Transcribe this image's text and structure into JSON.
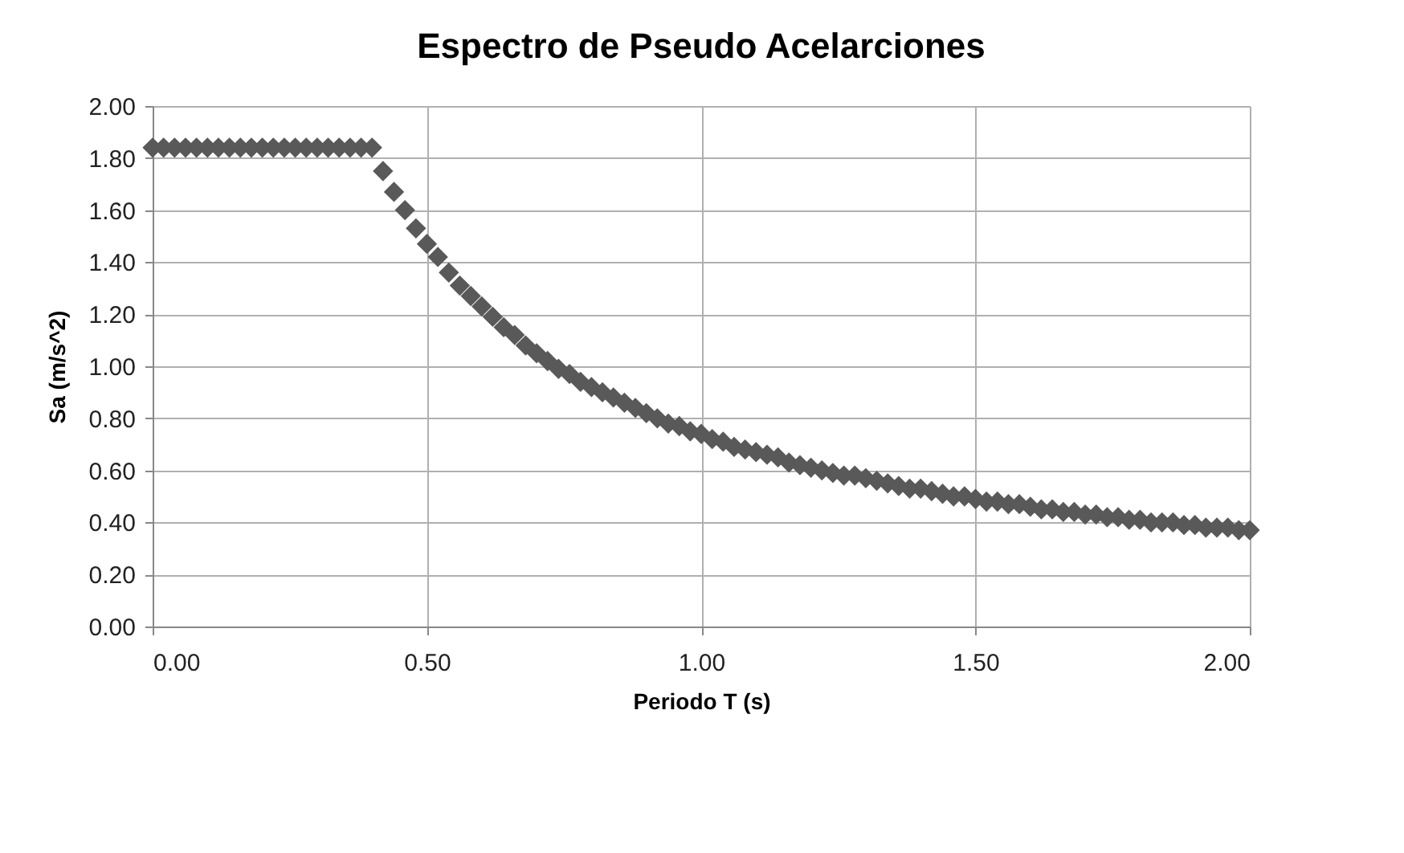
{
  "chart_data": {
    "type": "scatter",
    "title": "Espectro de Pseudo Acelarciones",
    "xlabel": "Periodo T (s)",
    "ylabel": "Sa (m/s^2)",
    "x": [
      0,
      0.02,
      0.04,
      0.06,
      0.08,
      0.1,
      0.12,
      0.14,
      0.16,
      0.18,
      0.2,
      0.22,
      0.24,
      0.26,
      0.28,
      0.3,
      0.32,
      0.34,
      0.36,
      0.38,
      0.4,
      0.42,
      0.44,
      0.46,
      0.48,
      0.5,
      0.52,
      0.54,
      0.56,
      0.58,
      0.6,
      0.62,
      0.64,
      0.66,
      0.68,
      0.7,
      0.72,
      0.74,
      0.76,
      0.78,
      0.8,
      0.82,
      0.84,
      0.86,
      0.88,
      0.9,
      0.92,
      0.94,
      0.96,
      0.98,
      1,
      1.02,
      1.04,
      1.06,
      1.08,
      1.1,
      1.12,
      1.14,
      1.16,
      1.18,
      1.2,
      1.22,
      1.24,
      1.26,
      1.28,
      1.3,
      1.32,
      1.34,
      1.36,
      1.38,
      1.4,
      1.42,
      1.44,
      1.46,
      1.48,
      1.5,
      1.52,
      1.54,
      1.56,
      1.58,
      1.6,
      1.62,
      1.64,
      1.66,
      1.68,
      1.7,
      1.72,
      1.74,
      1.76,
      1.78,
      1.8,
      1.82,
      1.84,
      1.86,
      1.88,
      1.9,
      1.92,
      1.94,
      1.96,
      1.98,
      2
    ],
    "series": [
      {
        "color": "#595959",
        "values": [
          1.84,
          1.84,
          1.84,
          1.84,
          1.84,
          1.84,
          1.84,
          1.84,
          1.84,
          1.84,
          1.84,
          1.84,
          1.84,
          1.84,
          1.84,
          1.84,
          1.84,
          1.84,
          1.84,
          1.84,
          1.84,
          1.75,
          1.67,
          1.6,
          1.53,
          1.47,
          1.42,
          1.36,
          1.31,
          1.27,
          1.23,
          1.19,
          1.15,
          1.12,
          1.08,
          1.05,
          1.02,
          0.99,
          0.97,
          0.94,
          0.92,
          0.9,
          0.88,
          0.86,
          0.84,
          0.82,
          0.8,
          0.78,
          0.77,
          0.75,
          0.74,
          0.72,
          0.71,
          0.69,
          0.68,
          0.67,
          0.66,
          0.65,
          0.63,
          0.62,
          0.61,
          0.6,
          0.59,
          0.58,
          0.58,
          0.57,
          0.56,
          0.55,
          0.54,
          0.53,
          0.53,
          0.52,
          0.51,
          0.5,
          0.5,
          0.49,
          0.48,
          0.48,
          0.47,
          0.47,
          0.46,
          0.45,
          0.45,
          0.44,
          0.44,
          0.43,
          0.43,
          0.42,
          0.42,
          0.41,
          0.41,
          0.4,
          0.4,
          0.4,
          0.39,
          0.39,
          0.38,
          0.38,
          0.38,
          0.37,
          0.37
        ]
      }
    ],
    "xlim": [
      0,
      2
    ],
    "xticks": [
      {
        "value": 0,
        "label": "0.00"
      },
      {
        "value": 0.5,
        "label": "0.50"
      },
      {
        "value": 1,
        "label": "1.00"
      },
      {
        "value": 1.5,
        "label": "1.50"
      },
      {
        "value": 2,
        "label": "2.00"
      }
    ],
    "ylim": [
      0,
      2
    ],
    "yticks": [
      {
        "value": 0,
        "label": "0.00"
      },
      {
        "value": 0.2,
        "label": "0.20"
      },
      {
        "value": 0.4,
        "label": "0.40"
      },
      {
        "value": 0.6,
        "label": "0.60"
      },
      {
        "value": 0.8,
        "label": "0.80"
      },
      {
        "value": 1,
        "label": "1.00"
      },
      {
        "value": 1.2,
        "label": "1.20"
      },
      {
        "value": 1.4,
        "label": "1.40"
      },
      {
        "value": 1.6,
        "label": "1.60"
      },
      {
        "value": 1.8,
        "label": "1.80"
      },
      {
        "value": 2,
        "label": "2.00"
      }
    ],
    "grid": true,
    "marker": "diamond",
    "legend": false
  }
}
